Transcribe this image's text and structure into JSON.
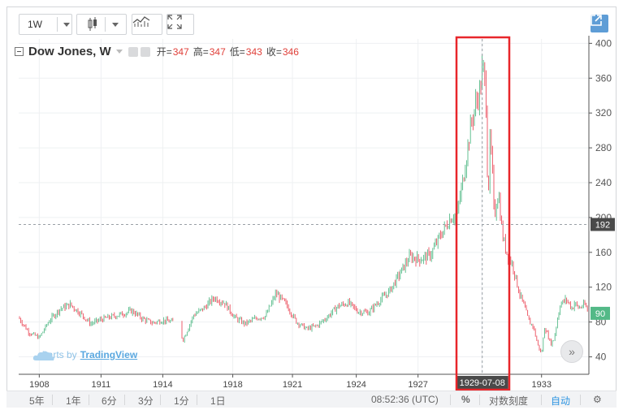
{
  "toolbar": {
    "interval": "1W",
    "icons": [
      "candles-icon",
      "compare-icon",
      "fullscreen-icon",
      "popout-icon"
    ]
  },
  "legend": {
    "symbol": "Dow Jones, W",
    "open_label": "开=",
    "open": "347",
    "high_label": "高=",
    "high": "347",
    "low_label": "低=",
    "low": "343",
    "close_label": "收=",
    "close": "346"
  },
  "watermark": {
    "prefix": "charts by",
    "brand": "TradingView"
  },
  "crosshair": {
    "date": "1929-07-08",
    "price": "192"
  },
  "last_price": "90",
  "bottombar": {
    "ranges": [
      "5年",
      "1年",
      "6分",
      "3分",
      "1分",
      "1日"
    ],
    "time": "08:52:36 (UTC)",
    "percent": "%",
    "log": "对数刻度",
    "auto": "自动"
  },
  "colors": {
    "up": "#53b987",
    "down": "#eb4d5c",
    "highlight": "#e8262b",
    "popout": "#5e9dd6"
  },
  "chart_data": {
    "type": "line",
    "series": [
      {
        "x": [
          1907,
          1907.5,
          1908,
          1908.5,
          1909,
          1909.5,
          1910,
          1910.5,
          1911,
          1911.5,
          1912,
          1912.5,
          1913,
          1913.5,
          1914,
          1914.5,
          1915,
          1915.5,
          1916,
          1916.5,
          1917,
          1917.5,
          1918,
          1918.5,
          1919,
          1919.5,
          1920,
          1920.5,
          1921,
          1921.5,
          1922,
          1922.5,
          1923,
          1923.5,
          1924,
          1924.5,
          1925,
          1925.5,
          1926,
          1926.5,
          1927,
          1927.5,
          1928,
          1928.3,
          1928.6,
          1928.9,
          1929,
          1929.2,
          1929.4,
          1929.55,
          1929.7,
          1929.8,
          1929.9,
          1930,
          1930.1,
          1930.3,
          1930.5,
          1930.7,
          1931,
          1931.3,
          1931.6,
          1931.8,
          1932,
          1932.2,
          1932.4,
          1932.55,
          1932.7,
          1932.85,
          1933,
          1933.3,
          1933.6,
          1933.9,
          1934,
          1934.2,
          1934.5,
          1934.7
        ],
        "values": [
          85,
          68,
          62,
          82,
          95,
          100,
          90,
          78,
          83,
          86,
          89,
          93,
          84,
          79,
          82,
          80,
          60,
          88,
          96,
          108,
          102,
          85,
          78,
          84,
          87,
          113,
          100,
          80,
          72,
          76,
          86,
          98,
          102,
          92,
          91,
          104,
          115,
          135,
          155,
          152,
          157,
          180,
          200,
          205,
          245,
          295,
          310,
          330,
          345,
          375,
          340,
          215,
          290,
          260,
          200,
          230,
          180,
          160,
          145,
          115,
          95,
          80,
          75,
          55,
          43,
          75,
          65,
          55,
          60,
          100,
          106,
          95,
          102,
          96,
          100,
          90
        ]
      }
    ],
    "x_tick_labels": [
      "1908",
      "1911",
      "1914",
      "1918",
      "1921",
      "1924",
      "1927",
      "1933"
    ],
    "y_tick_labels": [
      "40",
      "80",
      "120",
      "160",
      "200",
      "240",
      "280",
      "320",
      "360",
      "400"
    ],
    "ylim": [
      20,
      405
    ],
    "grid": true,
    "highlight_date": "1929-07-08"
  }
}
